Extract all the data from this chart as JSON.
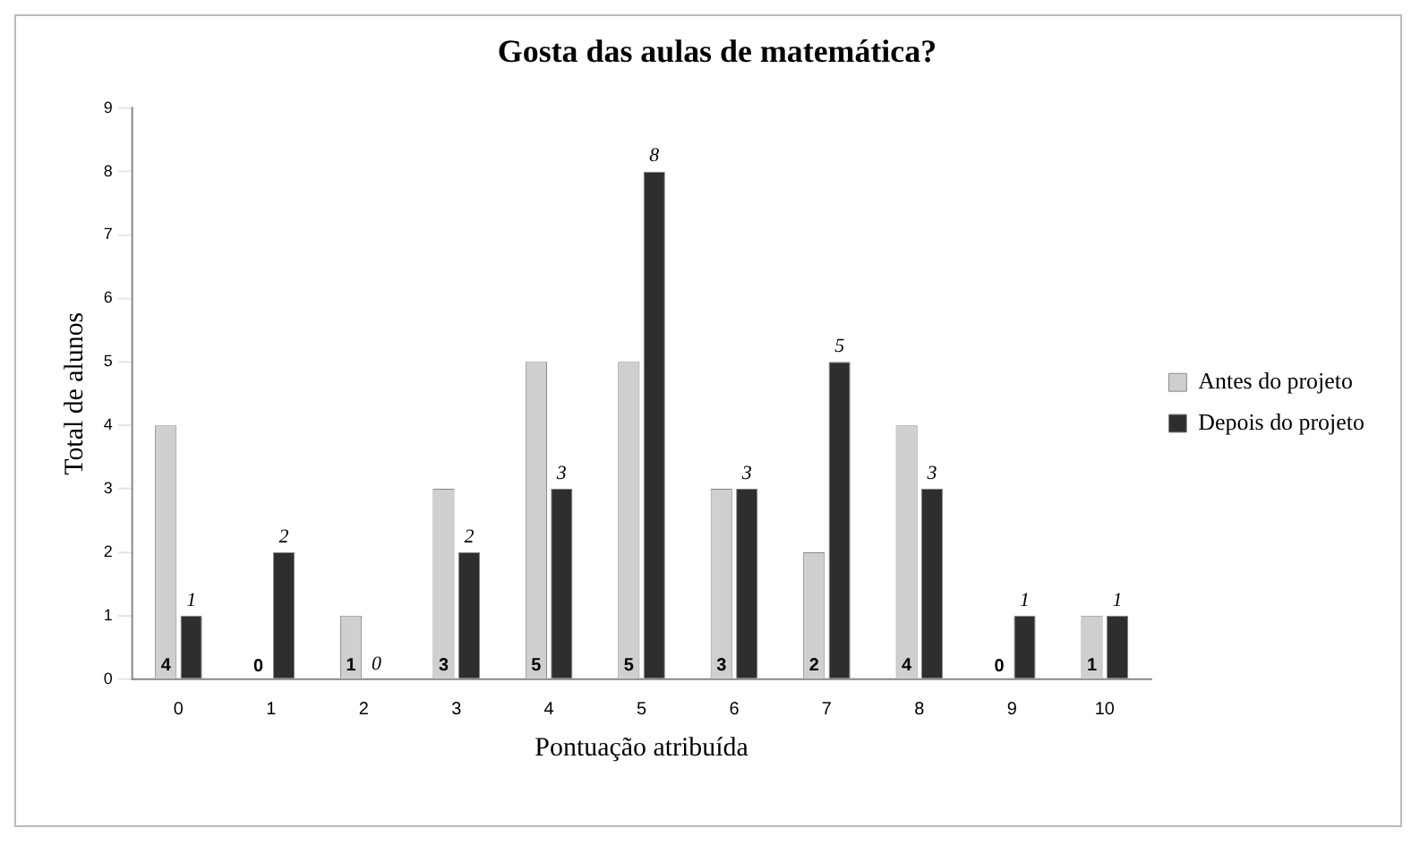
{
  "chart_data": {
    "type": "bar",
    "title": "Gosta das aulas de matemática?",
    "xlabel": "Pontuação atribuída",
    "ylabel": "Total de alunos",
    "categories": [
      "0",
      "1",
      "2",
      "3",
      "4",
      "5",
      "6",
      "7",
      "8",
      "9",
      "10"
    ],
    "series": [
      {
        "name": "Antes do projeto",
        "color": "#cfcfcf",
        "values": [
          4,
          0,
          1,
          3,
          5,
          5,
          3,
          2,
          4,
          0,
          1
        ]
      },
      {
        "name": "Depois do projeto",
        "color": "#2e2e2e",
        "values": [
          1,
          2,
          0,
          2,
          3,
          8,
          3,
          5,
          3,
          1,
          1
        ]
      }
    ],
    "ylim": [
      0,
      9
    ],
    "yticks": [
      0,
      1,
      2,
      3,
      4,
      5,
      6,
      7,
      8,
      9
    ],
    "grid": false,
    "legend": "right",
    "data_labels": true
  }
}
